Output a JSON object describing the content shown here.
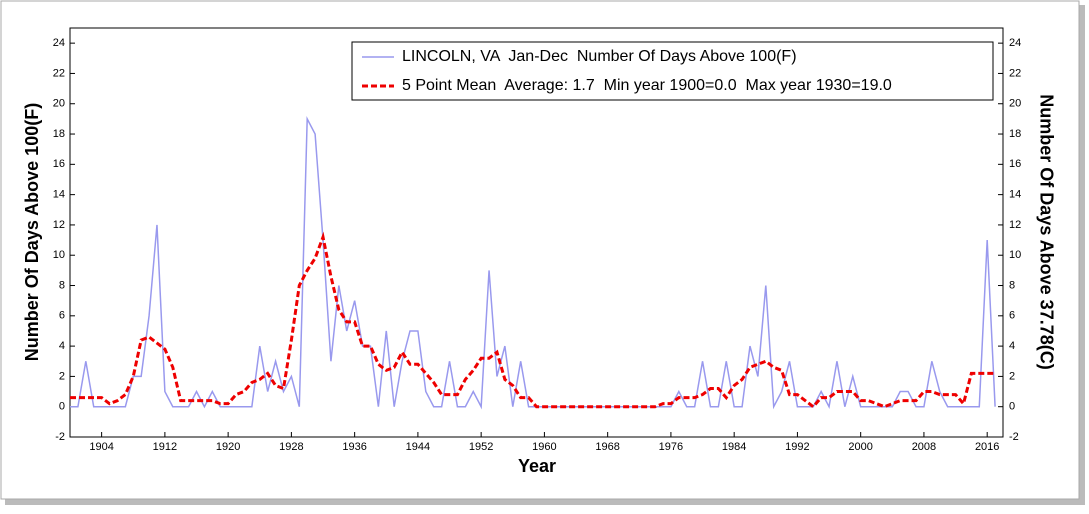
{
  "chart_data": {
    "type": "line",
    "x_label": "Year",
    "y_label": "Number Of Days Above 100(F)",
    "y2_label": "Number Of Days Above 37.78(C)",
    "x": [
      1900,
      1901,
      1902,
      1903,
      1904,
      1905,
      1906,
      1907,
      1908,
      1909,
      1910,
      1911,
      1912,
      1913,
      1914,
      1915,
      1916,
      1917,
      1918,
      1919,
      1920,
      1921,
      1922,
      1923,
      1924,
      1925,
      1926,
      1927,
      1928,
      1929,
      1930,
      1931,
      1932,
      1933,
      1934,
      1935,
      1936,
      1937,
      1938,
      1939,
      1940,
      1941,
      1942,
      1943,
      1944,
      1945,
      1946,
      1947,
      1948,
      1949,
      1950,
      1951,
      1952,
      1953,
      1954,
      1955,
      1956,
      1957,
      1958,
      1959,
      1960,
      1961,
      1962,
      1963,
      1964,
      1965,
      1966,
      1967,
      1968,
      1969,
      1970,
      1971,
      1972,
      1973,
      1974,
      1975,
      1976,
      1977,
      1978,
      1979,
      1980,
      1981,
      1982,
      1983,
      1984,
      1985,
      1986,
      1987,
      1988,
      1989,
      1990,
      1991,
      1992,
      1993,
      1994,
      1995,
      1996,
      1997,
      1998,
      1999,
      2000,
      2001,
      2002,
      2003,
      2004,
      2005,
      2006,
      2007,
      2008,
      2009,
      2010,
      2011,
      2012,
      2013,
      2014,
      2015,
      2016,
      2017
    ],
    "series": [
      {
        "name": "LINCOLN, VA  Jan-Dec  Number Of Days Above 100(F)",
        "color": "#9999ee",
        "style": "solid",
        "values": [
          0,
          0,
          3,
          0,
          0,
          0,
          0,
          0,
          2,
          2,
          6,
          12,
          1,
          0,
          0,
          0,
          1,
          0,
          1,
          0,
          0,
          0,
          0,
          0,
          4,
          1,
          3,
          1,
          2,
          0,
          19,
          18,
          11,
          3,
          8,
          5,
          7,
          4,
          4,
          0,
          5,
          0,
          3,
          5,
          5,
          1,
          0,
          0,
          3,
          0,
          0,
          1,
          0,
          9,
          2,
          4,
          0,
          3,
          0,
          0,
          0,
          0,
          0,
          0,
          0,
          0,
          0,
          0,
          0,
          0,
          0,
          0,
          0,
          0,
          0,
          0,
          0,
          1,
          0,
          0,
          3,
          0,
          0,
          3,
          0,
          0,
          4,
          2,
          8,
          0,
          1,
          3,
          0,
          0,
          0,
          1,
          0,
          3,
          0,
          2,
          0,
          0,
          0,
          0,
          0,
          1,
          1,
          0,
          0,
          3,
          1,
          0,
          0,
          0,
          0,
          0,
          11,
          0
        ]
      },
      {
        "name": "5 Point Mean  Average: 1.7  Min year 1900=0.0  Max year 1930=19.0",
        "color": "#ee0000",
        "style": "dashed",
        "values": [
          0.6,
          0.6,
          0.6,
          0.6,
          0.6,
          0.2,
          0.4,
          0.8,
          2,
          4.4,
          4.6,
          4.2,
          3.8,
          2.6,
          0.4,
          0.4,
          0.4,
          0.4,
          0.4,
          0.2,
          0.2,
          0.8,
          1,
          1.6,
          1.8,
          2.2,
          1.4,
          1.2,
          4.4,
          8,
          9,
          9.8,
          11.2,
          8.6,
          6.4,
          5.6,
          5.6,
          4,
          4,
          2.8,
          2.4,
          2.6,
          3.6,
          2.8,
          2.8,
          2.2,
          1.6,
          0.8,
          0.8,
          0.8,
          1.8,
          2.4,
          3.2,
          3.2,
          3.6,
          1.8,
          1.4,
          0.6,
          0.6,
          0,
          0,
          0,
          0,
          0,
          0,
          0,
          0,
          0,
          0,
          0,
          0,
          0,
          0,
          0,
          0,
          0.2,
          0.2,
          0.6,
          0.6,
          0.6,
          0.8,
          1.2,
          1.2,
          0.6,
          1.4,
          1.8,
          2.6,
          2.8,
          3,
          2.6,
          2.4,
          0.8,
          0.8,
          0.4,
          0,
          0.6,
          0.6,
          1,
          1,
          1,
          0.4,
          0.4,
          0.2,
          0,
          0.2,
          0.4,
          0.4,
          0.4,
          1,
          1,
          0.8,
          0.8,
          0.8,
          0.2,
          2.2,
          2.2,
          2.2,
          2.2
        ]
      }
    ],
    "xlim": [
      1900,
      2018
    ],
    "xticks": [
      1904,
      1912,
      1920,
      1928,
      1936,
      1944,
      1952,
      1960,
      1968,
      1976,
      1984,
      1992,
      2000,
      2008,
      2016
    ],
    "ylim": [
      -2,
      25
    ],
    "yticks": [
      -2,
      0,
      2,
      4,
      6,
      8,
      10,
      12,
      14,
      16,
      18,
      20,
      22,
      24
    ],
    "y2lim": [
      -2,
      25
    ],
    "y2ticks": [
      -2,
      0,
      2,
      4,
      6,
      8,
      10,
      12,
      14,
      16,
      18,
      20,
      22,
      24
    ],
    "legend": "top-right"
  }
}
